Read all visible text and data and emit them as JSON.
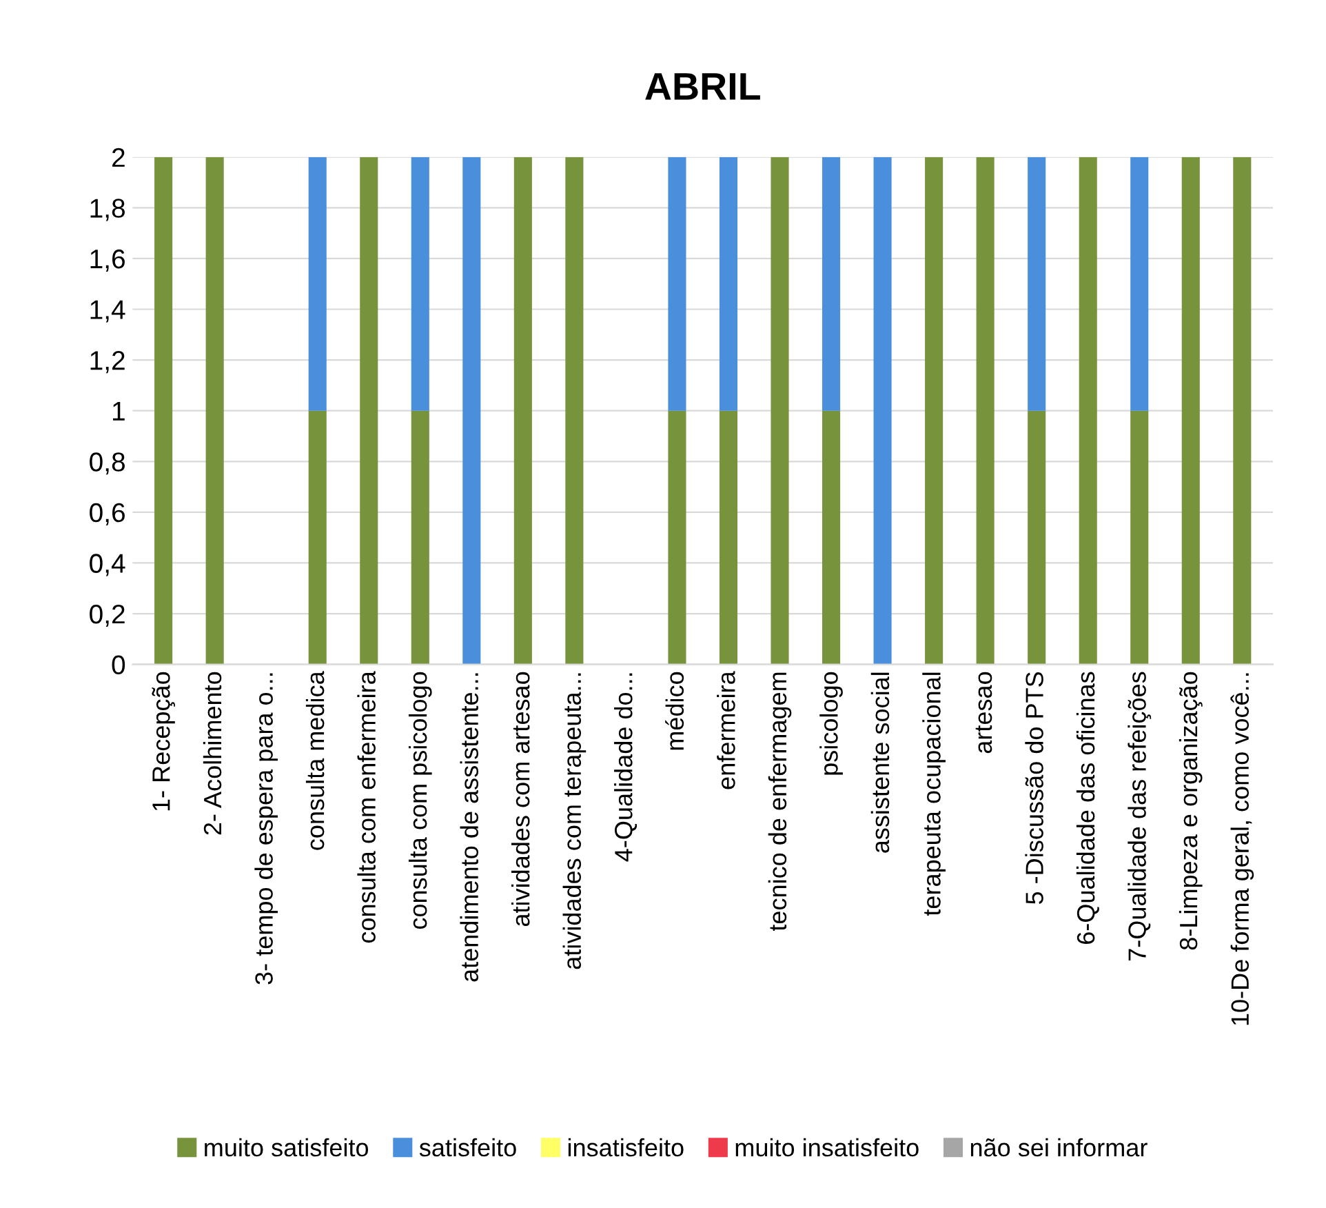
{
  "chart_data": {
    "type": "bar",
    "title": "ABRIL",
    "stacked": true,
    "categories": [
      "1- Recepção",
      "2- Acolhimento",
      "3- tempo de espera para o...",
      "consulta medica",
      "consulta com enfermeira",
      "consulta com psicologo",
      "atendimento de assistente...",
      "atividades com artesao",
      "atividades com terapeuta...",
      "4-Qualidade do...",
      "médico",
      "enfermeira",
      "tecnico de enfermagem",
      "psicologo",
      "assistente social",
      "terapeuta ocupacional",
      "artesao",
      "5 -Discussão do PTS",
      "6-Qualidade das oficinas",
      "7-Qualidade das refeições",
      "8-Limpeza e organização",
      "10-De forma geral, como você..."
    ],
    "series": [
      {
        "name": "muito satisfeito",
        "color": "#77933c",
        "values": [
          2,
          2,
          0,
          1,
          2,
          1,
          0,
          2,
          2,
          0,
          1,
          1,
          2,
          1,
          0,
          2,
          2,
          1,
          2,
          1,
          2,
          2
        ]
      },
      {
        "name": "satisfeito",
        "color": "#4a8fdc",
        "values": [
          0,
          0,
          0,
          1,
          0,
          1,
          2,
          0,
          0,
          0,
          1,
          1,
          0,
          1,
          2,
          0,
          0,
          1,
          0,
          1,
          0,
          0
        ]
      },
      {
        "name": "insatisfeito",
        "color": "#ffff66",
        "values": [
          0,
          0,
          0,
          0,
          0,
          0,
          0,
          0,
          0,
          0,
          0,
          0,
          0,
          0,
          0,
          0,
          0,
          0,
          0,
          0,
          0,
          0
        ]
      },
      {
        "name": "muito insatisfeito",
        "color": "#ee3b4b",
        "values": [
          0,
          0,
          0,
          0,
          0,
          0,
          0,
          0,
          0,
          0,
          0,
          0,
          0,
          0,
          0,
          0,
          0,
          0,
          0,
          0,
          0,
          0
        ]
      },
      {
        "name": "não sei informar",
        "color": "#a6a6a6",
        "values": [
          0,
          0,
          0,
          0,
          0,
          0,
          0,
          0,
          0,
          0,
          0,
          0,
          0,
          0,
          0,
          0,
          0,
          0,
          0,
          0,
          0,
          0
        ]
      }
    ],
    "ylim": [
      0,
      2
    ],
    "yticks": [
      {
        "value": 0,
        "label": "0"
      },
      {
        "value": 0.2,
        "label": "0,2"
      },
      {
        "value": 0.4,
        "label": "0,4"
      },
      {
        "value": 0.6,
        "label": "0,6"
      },
      {
        "value": 0.8,
        "label": "0,8"
      },
      {
        "value": 1,
        "label": "1"
      },
      {
        "value": 1.2,
        "label": "1,2"
      },
      {
        "value": 1.4,
        "label": "1,4"
      },
      {
        "value": 1.6,
        "label": "1,6"
      },
      {
        "value": 1.8,
        "label": "1,8"
      },
      {
        "value": 2,
        "label": "2"
      }
    ],
    "grid": "y",
    "legend": "bottom"
  }
}
